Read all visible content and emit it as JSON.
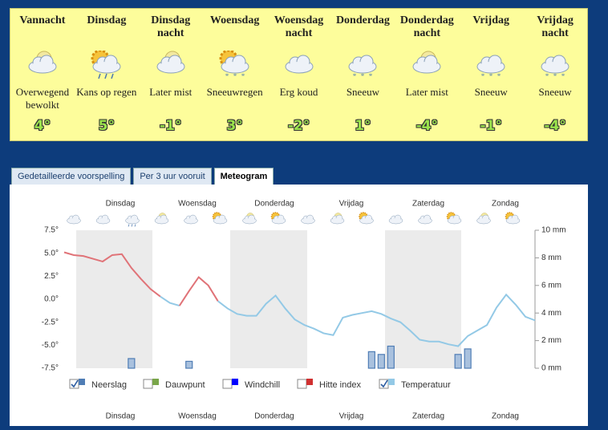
{
  "forecast": [
    {
      "heading": "Vannacht",
      "description": "Overwegend bewolkt",
      "temp": "4°"
    },
    {
      "heading": "Dinsdag",
      "description": "Kans op regen",
      "temp": "5°"
    },
    {
      "heading": "Dinsdag nacht",
      "description": "Later mist",
      "temp": "-1°"
    },
    {
      "heading": "Woensdag",
      "description": "Sneeuwregen",
      "temp": "3°"
    },
    {
      "heading": "Woensdag nacht",
      "description": "Erg koud",
      "temp": "-2°"
    },
    {
      "heading": "Donderdag",
      "description": "Sneeuw",
      "temp": "1°"
    },
    {
      "heading": "Donderdag nacht",
      "description": "Later mist",
      "temp": "-4°"
    },
    {
      "heading": "Vrijdag",
      "description": "Sneeuw",
      "temp": "-1°"
    },
    {
      "heading": "Vrijdag nacht",
      "description": "Sneeuw",
      "temp": "-4°"
    }
  ],
  "tabs": [
    "Gedetailleerde voorspelling",
    "Per 3 uur vooruit",
    "Meteogram"
  ],
  "active_tab": 2,
  "chart_data": {
    "type": "meteogram",
    "days": [
      "Dinsdag",
      "Woensdag",
      "Donderdag",
      "Vrijdag",
      "Zaterdag",
      "Zondag"
    ],
    "ylim": [
      -7.5,
      7.5
    ],
    "yticks": [
      {
        "value": 7.5,
        "label": "7.5°"
      },
      {
        "value": 5,
        "label": "5.0°"
      },
      {
        "value": 2.5,
        "label": "2.5°"
      },
      {
        "value": 0,
        "label": "0.0°"
      },
      {
        "value": -2.5,
        "label": "-2.5°"
      },
      {
        "value": -5,
        "label": "-5.0°"
      },
      {
        "value": -7.5,
        "label": "-7.5°"
      }
    ],
    "y2lim": [
      0,
      10
    ],
    "y2ticks": [
      {
        "value": 10,
        "label": "10 mm"
      },
      {
        "value": 8,
        "label": "8 mm"
      },
      {
        "value": 6,
        "label": "6 mm"
      },
      {
        "value": 4,
        "label": "4 mm"
      },
      {
        "value": 2,
        "label": "2 mm"
      },
      {
        "value": 0,
        "label": "0 mm"
      }
    ],
    "series": [
      {
        "name": "Neerslag",
        "color": "#4f7db5",
        "checked": true,
        "axis": "y2",
        "values": [
          0,
          0,
          0,
          0,
          0,
          0,
          0,
          0.7,
          0,
          0,
          0,
          0,
          0,
          0.5,
          0,
          0,
          0,
          0,
          0,
          0,
          0,
          0,
          0,
          0,
          0,
          0,
          0,
          0,
          0,
          0,
          0,
          0,
          1.2,
          1.0,
          1.6,
          0,
          0,
          0,
          0,
          0,
          0,
          1.0,
          1.4,
          0,
          0,
          0,
          0,
          0,
          0,
          0
        ]
      },
      {
        "name": "Dauwpunt",
        "color": "#7aa64a",
        "checked": false
      },
      {
        "name": "Windchill",
        "color": "#0000ff",
        "checked": false
      },
      {
        "name": "Hitte index",
        "color": "#d03030",
        "checked": false
      },
      {
        "name": "Temperatuur",
        "color": "#93c9e6",
        "color_above_zero": "#e07378",
        "checked": true,
        "values": [
          5.1,
          4.8,
          4.7,
          4.4,
          4.1,
          4.8,
          4.9,
          3.4,
          2.2,
          1.1,
          0.3,
          -0.4,
          -0.7,
          0.9,
          2.4,
          1.5,
          -0.2,
          -1.0,
          -1.6,
          -1.8,
          -1.8,
          -0.5,
          0.4,
          -1.0,
          -2.2,
          -2.8,
          -3.2,
          -3.7,
          -3.9,
          -2.0,
          -1.7,
          -1.5,
          -1.3,
          -1.6,
          -2.1,
          -2.5,
          -3.4,
          -4.4,
          -4.6,
          -4.6,
          -4.9,
          -5.1,
          -4.0,
          -3.4,
          -2.8,
          -0.9,
          0.5,
          -0.6,
          -1.9,
          -2.3
        ]
      }
    ]
  }
}
